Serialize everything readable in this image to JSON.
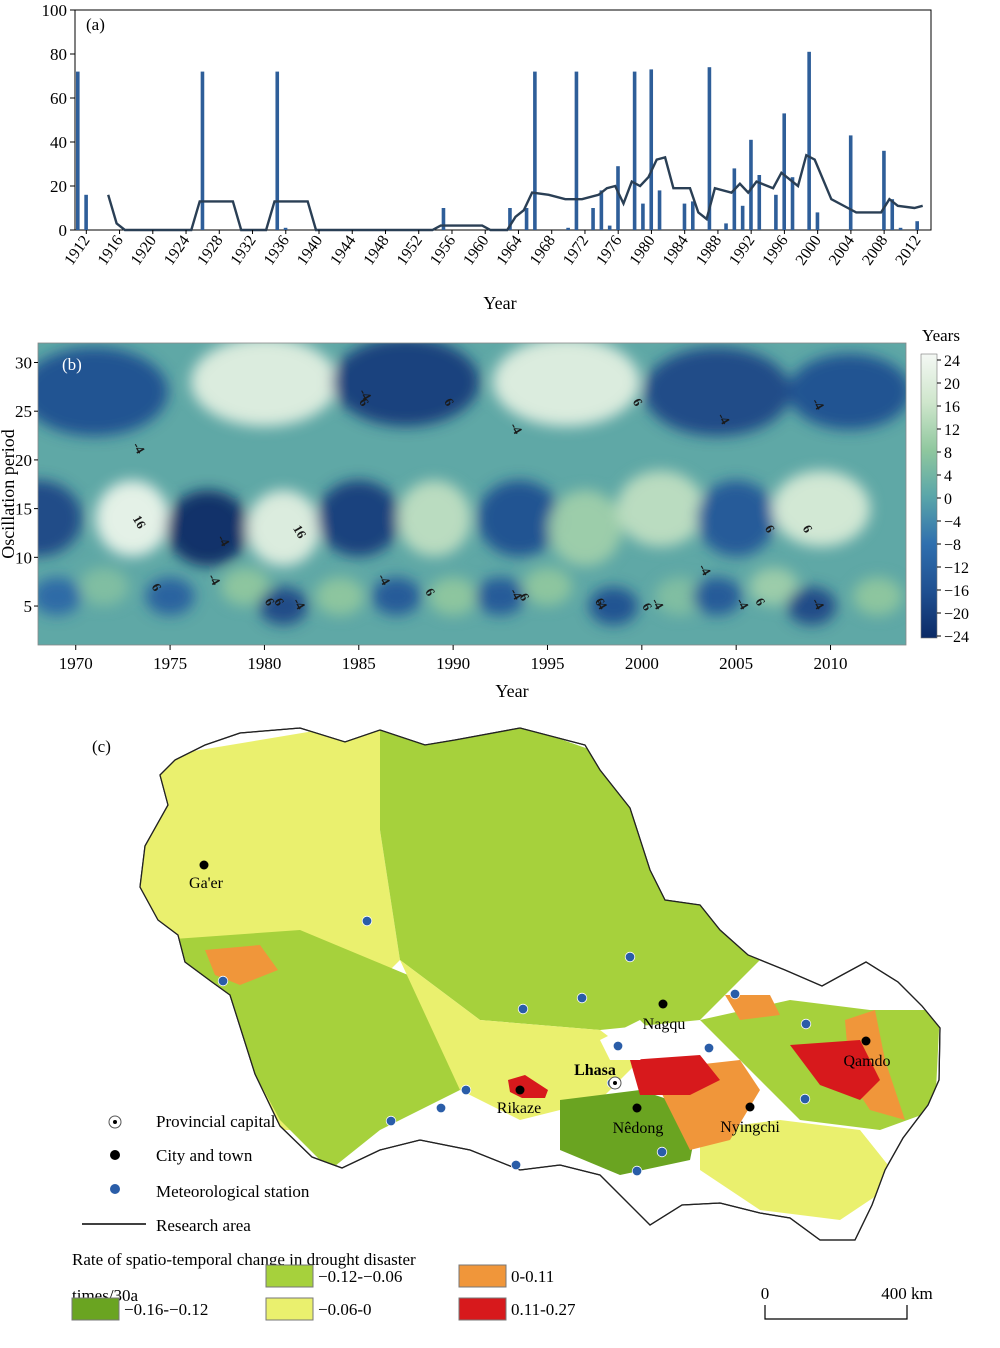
{
  "panel_a": {
    "label": "(a)",
    "xlabel": "Year",
    "y_ticks": [
      "0",
      "20",
      "40",
      "60",
      "80",
      "100"
    ],
    "x_ticks": [
      "1912",
      "1916",
      "1920",
      "1924",
      "1928",
      "1932",
      "1936",
      "1940",
      "1944",
      "1948",
      "1952",
      "1956",
      "1960",
      "1964",
      "1968",
      "1972",
      "1976",
      "1980",
      "1984",
      "1988",
      "1992",
      "1996",
      "2000",
      "2004",
      "2008",
      "2012"
    ]
  },
  "panel_b": {
    "label": "(b)",
    "xlabel": "Year",
    "ylabel": "Oscillation period",
    "legend_title": "Years",
    "y_ticks": [
      "5",
      "10",
      "15",
      "20",
      "25",
      "30"
    ],
    "x_ticks": [
      "1970",
      "1975",
      "1980",
      "1985",
      "1990",
      "1995",
      "2000",
      "2005",
      "2010"
    ],
    "colorbar_ticks": [
      "24",
      "20",
      "16",
      "12",
      "8",
      "4",
      "0",
      "−4",
      "−8",
      "−12",
      "−16",
      "−20",
      "−24"
    ],
    "contour_labels": [
      "16",
      "-4",
      "6",
      "-4",
      "6",
      "16",
      "-4",
      "6",
      "-4",
      "6",
      "-4",
      "6",
      "6",
      "-4",
      "6",
      "-4",
      "6",
      "-4",
      "6",
      "-4",
      "-4",
      "6",
      "-4",
      "-4",
      "6",
      "-4",
      "-4",
      "6",
      "6",
      "-4"
    ]
  },
  "panel_c": {
    "label": "(c)",
    "cities": {
      "gaer": "Ga'er",
      "nagqu": "Nagqu",
      "lhasa": "Lhasa",
      "qamdo": "Qamdo",
      "rikaze": "Rikaze",
      "nedong": "Nêdong",
      "nyingchi": "Nyingchi"
    },
    "legend": {
      "provincial_capital": "Provincial capital",
      "city_town": "City and town",
      "met_station": "Meteorological station",
      "research_area": "Research area"
    },
    "rate_title_line1": "Rate of spatio-temporal change in drought disaster",
    "rate_title_line2": "times/30a",
    "rate_classes": [
      {
        "label": "−0.16-−0.12",
        "color": "#6aa421"
      },
      {
        "label": "−0.12-−0.06",
        "color": "#a6d13c"
      },
      {
        "label": "−0.06-0",
        "color": "#eaf06e"
      },
      {
        "label": "0-0.11",
        "color": "#f0963a"
      },
      {
        "label": "0.11-0.27",
        "color": "#d7191c"
      }
    ],
    "scale_bar": {
      "start": "0",
      "end": "400 km"
    }
  },
  "chart_data": [
    {
      "type": "bar",
      "title": "",
      "xlabel": "Year",
      "ylabel": "",
      "ylim": [
        0,
        100
      ],
      "xlim": [
        1911,
        2014
      ],
      "bar_color": "#2e5e99",
      "line_color": "#2a3f55",
      "bars": [
        {
          "x": 1911,
          "y": 72
        },
        {
          "x": 1912,
          "y": 16
        },
        {
          "x": 1926,
          "y": 72
        },
        {
          "x": 1935,
          "y": 72
        },
        {
          "x": 1936,
          "y": 1
        },
        {
          "x": 1955,
          "y": 10
        },
        {
          "x": 1963,
          "y": 10
        },
        {
          "x": 1965,
          "y": 10
        },
        {
          "x": 1966,
          "y": 72
        },
        {
          "x": 1970,
          "y": 1
        },
        {
          "x": 1971,
          "y": 72
        },
        {
          "x": 1973,
          "y": 10
        },
        {
          "x": 1974,
          "y": 18
        },
        {
          "x": 1975,
          "y": 2
        },
        {
          "x": 1976,
          "y": 29
        },
        {
          "x": 1978,
          "y": 72
        },
        {
          "x": 1979,
          "y": 12
        },
        {
          "x": 1980,
          "y": 73
        },
        {
          "x": 1981,
          "y": 18
        },
        {
          "x": 1984,
          "y": 12
        },
        {
          "x": 1985,
          "y": 13
        },
        {
          "x": 1987,
          "y": 74
        },
        {
          "x": 1989,
          "y": 3
        },
        {
          "x": 1990,
          "y": 28
        },
        {
          "x": 1991,
          "y": 11
        },
        {
          "x": 1992,
          "y": 41
        },
        {
          "x": 1993,
          "y": 25
        },
        {
          "x": 1995,
          "y": 16
        },
        {
          "x": 1996,
          "y": 53
        },
        {
          "x": 1997,
          "y": 24
        },
        {
          "x": 1999,
          "y": 81
        },
        {
          "x": 2000,
          "y": 8
        },
        {
          "x": 2004,
          "y": 43
        },
        {
          "x": 2008,
          "y": 36
        },
        {
          "x": 2009,
          "y": 14
        },
        {
          "x": 2010,
          "y": 1
        },
        {
          "x": 2012,
          "y": 4
        }
      ],
      "moving_average": [
        [
          1915,
          16
        ],
        [
          1916,
          3
        ],
        [
          1917,
          0
        ],
        [
          1925,
          0
        ],
        [
          1926,
          13
        ],
        [
          1930,
          13
        ],
        [
          1931,
          0
        ],
        [
          1934,
          0
        ],
        [
          1935,
          13
        ],
        [
          1939,
          13
        ],
        [
          1940,
          0
        ],
        [
          1954,
          0
        ],
        [
          1955,
          2
        ],
        [
          1960,
          2
        ],
        [
          1961,
          0
        ],
        [
          1963,
          0
        ],
        [
          1964,
          6
        ],
        [
          1965,
          9
        ],
        [
          1966,
          17
        ],
        [
          1968,
          16
        ],
        [
          1970,
          14
        ],
        [
          1972,
          14
        ],
        [
          1974,
          16
        ],
        [
          1975,
          19
        ],
        [
          1976,
          20
        ],
        [
          1977,
          12
        ],
        [
          1978,
          22
        ],
        [
          1979,
          20
        ],
        [
          1980,
          24
        ],
        [
          1981,
          32
        ],
        [
          1982,
          33
        ],
        [
          1983,
          19
        ],
        [
          1985,
          19
        ],
        [
          1986,
          8
        ],
        [
          1987,
          5
        ],
        [
          1988,
          19
        ],
        [
          1990,
          17
        ],
        [
          1991,
          21
        ],
        [
          1992,
          17
        ],
        [
          1993,
          22
        ],
        [
          1995,
          19
        ],
        [
          1996,
          26
        ],
        [
          1998,
          20
        ],
        [
          1999,
          34
        ],
        [
          2000,
          32
        ],
        [
          2002,
          14
        ],
        [
          2004,
          10
        ],
        [
          2005,
          8
        ],
        [
          2008,
          8
        ],
        [
          2009,
          14
        ],
        [
          2010,
          11
        ],
        [
          2012,
          10
        ],
        [
          2013,
          11
        ]
      ]
    },
    {
      "type": "heatmap",
      "title": "",
      "xlabel": "Year",
      "ylabel": "Oscillation period",
      "legend_title": "Years",
      "xlim": [
        1968,
        2014
      ],
      "ylim": [
        1,
        32
      ],
      "zlim": [
        -24,
        24
      ],
      "colorbar_ticks": [
        24,
        20,
        16,
        12,
        8,
        4,
        0,
        -4,
        -8,
        -12,
        -16,
        -20,
        -24
      ],
      "blobs": [
        {
          "x": 1968,
          "y": 14,
          "z": -18,
          "sx": 1.8,
          "sy": 3
        },
        {
          "x": 1973,
          "y": 14,
          "z": 22,
          "sx": 1.5,
          "sy": 3
        },
        {
          "x": 1977,
          "y": 13,
          "z": -24,
          "sx": 1.7,
          "sy": 3
        },
        {
          "x": 1981,
          "y": 13,
          "z": 20,
          "sx": 1.5,
          "sy": 3
        },
        {
          "x": 1985,
          "y": 14,
          "z": -20,
          "sx": 1.7,
          "sy": 3
        },
        {
          "x": 1989,
          "y": 14,
          "z": 14,
          "sx": 1.5,
          "sy": 3
        },
        {
          "x": 1993.5,
          "y": 14,
          "z": -16,
          "sx": 1.7,
          "sy": 3
        },
        {
          "x": 1997,
          "y": 13,
          "z": 10,
          "sx": 1.5,
          "sy": 3
        },
        {
          "x": 2001,
          "y": 15,
          "z": 14,
          "sx": 1.8,
          "sy": 3
        },
        {
          "x": 2005,
          "y": 14,
          "z": -14,
          "sx": 1.6,
          "sy": 3
        },
        {
          "x": 2009.5,
          "y": 15,
          "z": 18,
          "sx": 2.0,
          "sy": 3
        },
        {
          "x": 1971,
          "y": 27,
          "z": -16,
          "sx": 3,
          "sy": 3.5
        },
        {
          "x": 1980,
          "y": 28,
          "z": 20,
          "sx": 3,
          "sy": 3.5
        },
        {
          "x": 1987.5,
          "y": 28,
          "z": -20,
          "sx": 3,
          "sy": 3.5
        },
        {
          "x": 1996,
          "y": 28,
          "z": 20,
          "sx": 3,
          "sy": 3.5
        },
        {
          "x": 2004,
          "y": 27,
          "z": -18,
          "sx": 3,
          "sy": 3.5
        },
        {
          "x": 2011,
          "y": 27,
          "z": -16,
          "sx": 2.5,
          "sy": 3
        },
        {
          "x": 1969,
          "y": 6,
          "z": -10,
          "sx": 1,
          "sy": 1.5
        },
        {
          "x": 1971.5,
          "y": 7,
          "z": 6,
          "sx": 1,
          "sy": 1.5
        },
        {
          "x": 1975,
          "y": 6,
          "z": -12,
          "sx": 1,
          "sy": 1.5
        },
        {
          "x": 1979,
          "y": 7,
          "z": 8,
          "sx": 1,
          "sy": 1.5
        },
        {
          "x": 1981,
          "y": 5,
          "z": -18,
          "sx": 1,
          "sy": 1.5
        },
        {
          "x": 1984,
          "y": 6,
          "z": 8,
          "sx": 1,
          "sy": 1.5
        },
        {
          "x": 1987,
          "y": 6,
          "z": -14,
          "sx": 1,
          "sy": 1.5
        },
        {
          "x": 1990,
          "y": 6,
          "z": 8,
          "sx": 1,
          "sy": 1.5
        },
        {
          "x": 1992.5,
          "y": 6,
          "z": -14,
          "sx": 1,
          "sy": 1.5
        },
        {
          "x": 1995,
          "y": 7,
          "z": 8,
          "sx": 1,
          "sy": 1.5
        },
        {
          "x": 1998.5,
          "y": 5,
          "z": -16,
          "sx": 1,
          "sy": 1.5
        },
        {
          "x": 2002,
          "y": 6,
          "z": 6,
          "sx": 1,
          "sy": 1.5
        },
        {
          "x": 2004,
          "y": 6,
          "z": -14,
          "sx": 1,
          "sy": 1.5
        },
        {
          "x": 2007,
          "y": 7,
          "z": 10,
          "sx": 1,
          "sy": 1.5
        },
        {
          "x": 2009,
          "y": 5,
          "z": -18,
          "sx": 1,
          "sy": 1.5
        },
        {
          "x": 2012.5,
          "y": 6,
          "z": 8,
          "sx": 1,
          "sy": 1.5
        }
      ]
    }
  ]
}
